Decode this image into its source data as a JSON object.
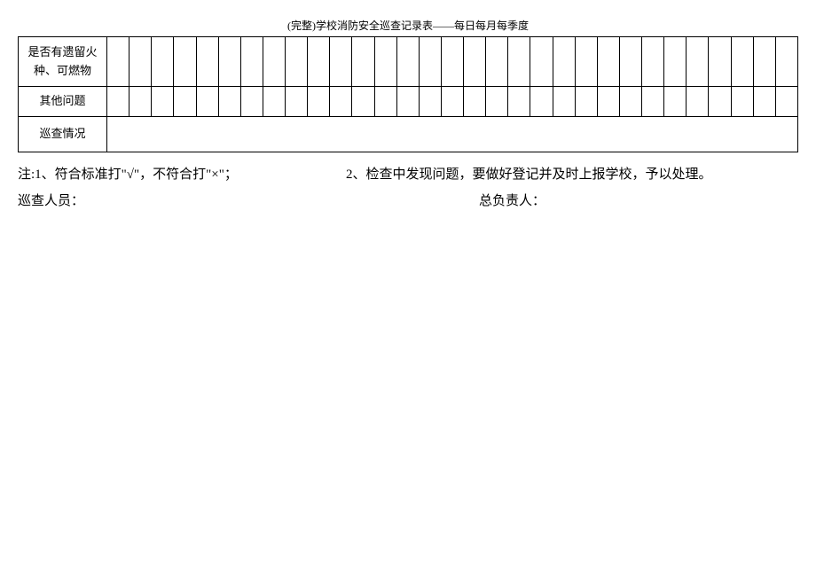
{
  "header": "(完整)学校消防安全巡查记录表——每日每月每季度",
  "table": {
    "label_col_width": 100,
    "data_cols": 31,
    "rows": [
      {
        "label": "是否有遗留火种、可燃物",
        "merged": false
      },
      {
        "label": "其他问题",
        "merged": false
      },
      {
        "label": "巡查情况",
        "merged": true
      }
    ],
    "border_color": "#000000",
    "background_color": "#ffffff"
  },
  "notes": {
    "line1_left": "注:1、符合标准打\"√\"，不符合打\"×\"；",
    "line1_right": "2、检查中发现问题，要做好登记并及时上报学校，予以处理。",
    "sign_left": "巡查人员：",
    "sign_right": "总负责人："
  },
  "page_font_size": 13,
  "header_font_size": 12,
  "notes_font_size": 15
}
